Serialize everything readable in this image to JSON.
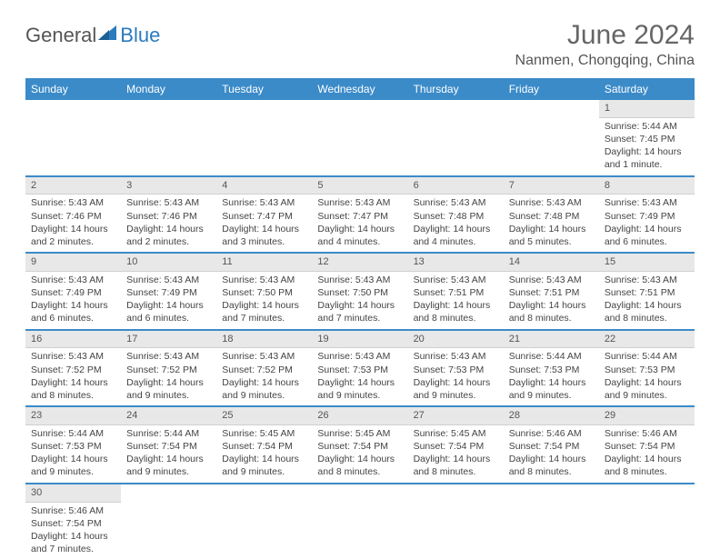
{
  "logo": {
    "text1": "General",
    "text2": "Blue"
  },
  "title": "June 2024",
  "location": "Nanmen, Chongqing, China",
  "colors": {
    "header_bg": "#3b8bc9",
    "header_text": "#ffffff",
    "daynum_bg": "#e8e8e8",
    "row_divider": "#3b8bc9",
    "text": "#444444",
    "title_color": "#666666"
  },
  "weekdays": [
    "Sunday",
    "Monday",
    "Tuesday",
    "Wednesday",
    "Thursday",
    "Friday",
    "Saturday"
  ],
  "weeks": [
    [
      null,
      null,
      null,
      null,
      null,
      null,
      {
        "n": "1",
        "sunrise": "Sunrise: 5:44 AM",
        "sunset": "Sunset: 7:45 PM",
        "daylight": "Daylight: 14 hours and 1 minute."
      }
    ],
    [
      {
        "n": "2",
        "sunrise": "Sunrise: 5:43 AM",
        "sunset": "Sunset: 7:46 PM",
        "daylight": "Daylight: 14 hours and 2 minutes."
      },
      {
        "n": "3",
        "sunrise": "Sunrise: 5:43 AM",
        "sunset": "Sunset: 7:46 PM",
        "daylight": "Daylight: 14 hours and 2 minutes."
      },
      {
        "n": "4",
        "sunrise": "Sunrise: 5:43 AM",
        "sunset": "Sunset: 7:47 PM",
        "daylight": "Daylight: 14 hours and 3 minutes."
      },
      {
        "n": "5",
        "sunrise": "Sunrise: 5:43 AM",
        "sunset": "Sunset: 7:47 PM",
        "daylight": "Daylight: 14 hours and 4 minutes."
      },
      {
        "n": "6",
        "sunrise": "Sunrise: 5:43 AM",
        "sunset": "Sunset: 7:48 PM",
        "daylight": "Daylight: 14 hours and 4 minutes."
      },
      {
        "n": "7",
        "sunrise": "Sunrise: 5:43 AM",
        "sunset": "Sunset: 7:48 PM",
        "daylight": "Daylight: 14 hours and 5 minutes."
      },
      {
        "n": "8",
        "sunrise": "Sunrise: 5:43 AM",
        "sunset": "Sunset: 7:49 PM",
        "daylight": "Daylight: 14 hours and 6 minutes."
      }
    ],
    [
      {
        "n": "9",
        "sunrise": "Sunrise: 5:43 AM",
        "sunset": "Sunset: 7:49 PM",
        "daylight": "Daylight: 14 hours and 6 minutes."
      },
      {
        "n": "10",
        "sunrise": "Sunrise: 5:43 AM",
        "sunset": "Sunset: 7:49 PM",
        "daylight": "Daylight: 14 hours and 6 minutes."
      },
      {
        "n": "11",
        "sunrise": "Sunrise: 5:43 AM",
        "sunset": "Sunset: 7:50 PM",
        "daylight": "Daylight: 14 hours and 7 minutes."
      },
      {
        "n": "12",
        "sunrise": "Sunrise: 5:43 AM",
        "sunset": "Sunset: 7:50 PM",
        "daylight": "Daylight: 14 hours and 7 minutes."
      },
      {
        "n": "13",
        "sunrise": "Sunrise: 5:43 AM",
        "sunset": "Sunset: 7:51 PM",
        "daylight": "Daylight: 14 hours and 8 minutes."
      },
      {
        "n": "14",
        "sunrise": "Sunrise: 5:43 AM",
        "sunset": "Sunset: 7:51 PM",
        "daylight": "Daylight: 14 hours and 8 minutes."
      },
      {
        "n": "15",
        "sunrise": "Sunrise: 5:43 AM",
        "sunset": "Sunset: 7:51 PM",
        "daylight": "Daylight: 14 hours and 8 minutes."
      }
    ],
    [
      {
        "n": "16",
        "sunrise": "Sunrise: 5:43 AM",
        "sunset": "Sunset: 7:52 PM",
        "daylight": "Daylight: 14 hours and 8 minutes."
      },
      {
        "n": "17",
        "sunrise": "Sunrise: 5:43 AM",
        "sunset": "Sunset: 7:52 PM",
        "daylight": "Daylight: 14 hours and 9 minutes."
      },
      {
        "n": "18",
        "sunrise": "Sunrise: 5:43 AM",
        "sunset": "Sunset: 7:52 PM",
        "daylight": "Daylight: 14 hours and 9 minutes."
      },
      {
        "n": "19",
        "sunrise": "Sunrise: 5:43 AM",
        "sunset": "Sunset: 7:53 PM",
        "daylight": "Daylight: 14 hours and 9 minutes."
      },
      {
        "n": "20",
        "sunrise": "Sunrise: 5:43 AM",
        "sunset": "Sunset: 7:53 PM",
        "daylight": "Daylight: 14 hours and 9 minutes."
      },
      {
        "n": "21",
        "sunrise": "Sunrise: 5:44 AM",
        "sunset": "Sunset: 7:53 PM",
        "daylight": "Daylight: 14 hours and 9 minutes."
      },
      {
        "n": "22",
        "sunrise": "Sunrise: 5:44 AM",
        "sunset": "Sunset: 7:53 PM",
        "daylight": "Daylight: 14 hours and 9 minutes."
      }
    ],
    [
      {
        "n": "23",
        "sunrise": "Sunrise: 5:44 AM",
        "sunset": "Sunset: 7:53 PM",
        "daylight": "Daylight: 14 hours and 9 minutes."
      },
      {
        "n": "24",
        "sunrise": "Sunrise: 5:44 AM",
        "sunset": "Sunset: 7:54 PM",
        "daylight": "Daylight: 14 hours and 9 minutes."
      },
      {
        "n": "25",
        "sunrise": "Sunrise: 5:45 AM",
        "sunset": "Sunset: 7:54 PM",
        "daylight": "Daylight: 14 hours and 9 minutes."
      },
      {
        "n": "26",
        "sunrise": "Sunrise: 5:45 AM",
        "sunset": "Sunset: 7:54 PM",
        "daylight": "Daylight: 14 hours and 8 minutes."
      },
      {
        "n": "27",
        "sunrise": "Sunrise: 5:45 AM",
        "sunset": "Sunset: 7:54 PM",
        "daylight": "Daylight: 14 hours and 8 minutes."
      },
      {
        "n": "28",
        "sunrise": "Sunrise: 5:46 AM",
        "sunset": "Sunset: 7:54 PM",
        "daylight": "Daylight: 14 hours and 8 minutes."
      },
      {
        "n": "29",
        "sunrise": "Sunrise: 5:46 AM",
        "sunset": "Sunset: 7:54 PM",
        "daylight": "Daylight: 14 hours and 8 minutes."
      }
    ],
    [
      {
        "n": "30",
        "sunrise": "Sunrise: 5:46 AM",
        "sunset": "Sunset: 7:54 PM",
        "daylight": "Daylight: 14 hours and 7 minutes."
      },
      null,
      null,
      null,
      null,
      null,
      null
    ]
  ]
}
